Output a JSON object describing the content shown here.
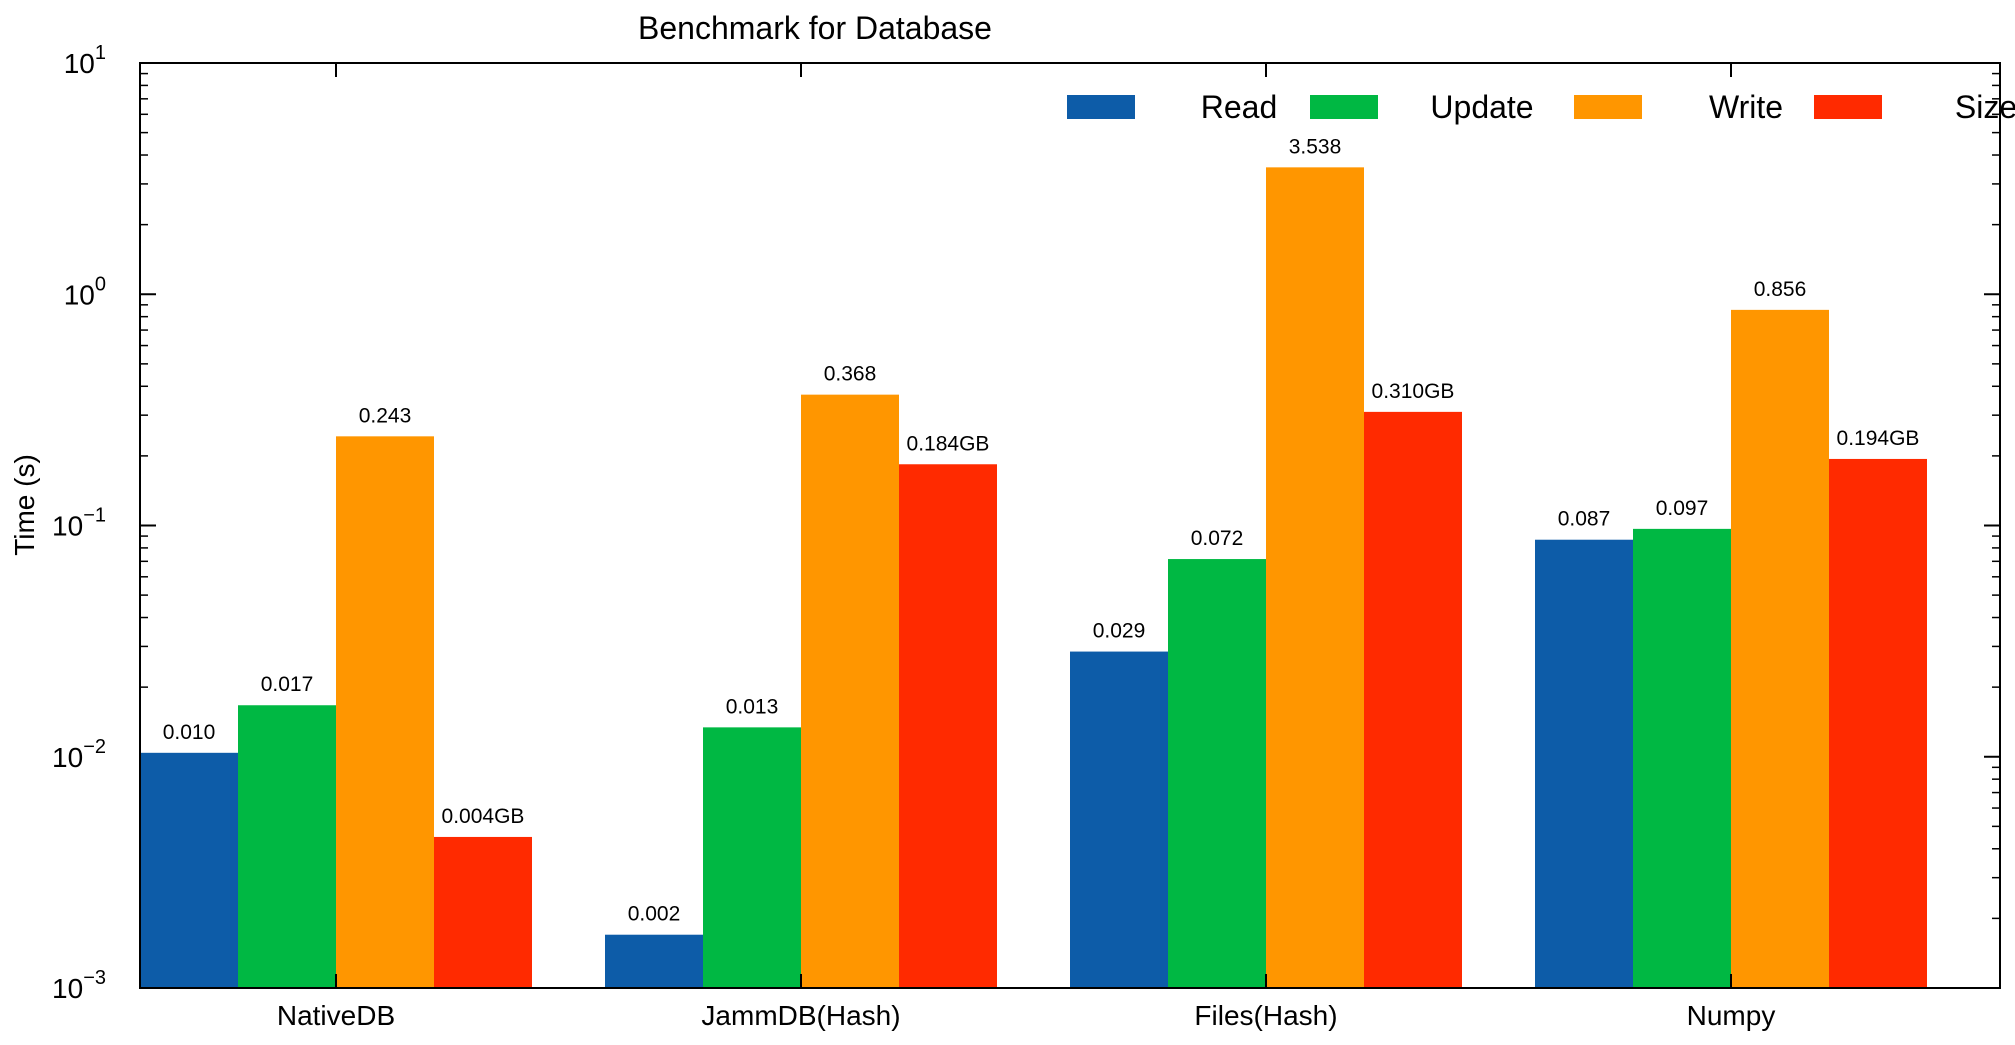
{
  "chart_data": {
    "type": "bar",
    "title": "Benchmark for Database",
    "xlabel": "",
    "ylabel": "Time (s)",
    "yscale": "log",
    "ylim": [
      0.001,
      10
    ],
    "yticks": [
      {
        "value": 10,
        "base": "10",
        "exp": "1"
      },
      {
        "value": 1,
        "base": "10",
        "exp": "0"
      },
      {
        "value": 0.1,
        "base": "10",
        "exp": "−1"
      },
      {
        "value": 0.01,
        "base": "10",
        "exp": "−2"
      },
      {
        "value": 0.001,
        "base": "10",
        "exp": "−3"
      }
    ],
    "categories": [
      "NativeDB",
      "JammDB(Hash)",
      "Files(Hash)",
      "Numpy"
    ],
    "legend_position": "top-right",
    "grid": false,
    "series": [
      {
        "name": "Read",
        "color": "#0d5ca8",
        "values": [
          0.0104,
          0.0017,
          0.0285,
          0.0868
        ],
        "labels": [
          "0.010",
          "0.002",
          "0.029",
          "0.087"
        ]
      },
      {
        "name": "Update",
        "color": "#00b843",
        "values": [
          0.0167,
          0.0134,
          0.0716,
          0.0967
        ],
        "labels": [
          "0.017",
          "0.013",
          "0.072",
          "0.097"
        ]
      },
      {
        "name": "Write",
        "color": "#ff9600",
        "values": [
          0.243,
          0.368,
          3.538,
          0.856
        ],
        "labels": [
          "0.243",
          "0.368",
          "3.538",
          "0.856"
        ]
      },
      {
        "name": "Size",
        "color": "#ff2a00",
        "values": [
          0.0045,
          0.184,
          0.31,
          0.194
        ],
        "labels": [
          "0.004GB",
          "0.184GB",
          "0.310GB",
          "0.194GB"
        ]
      }
    ]
  }
}
